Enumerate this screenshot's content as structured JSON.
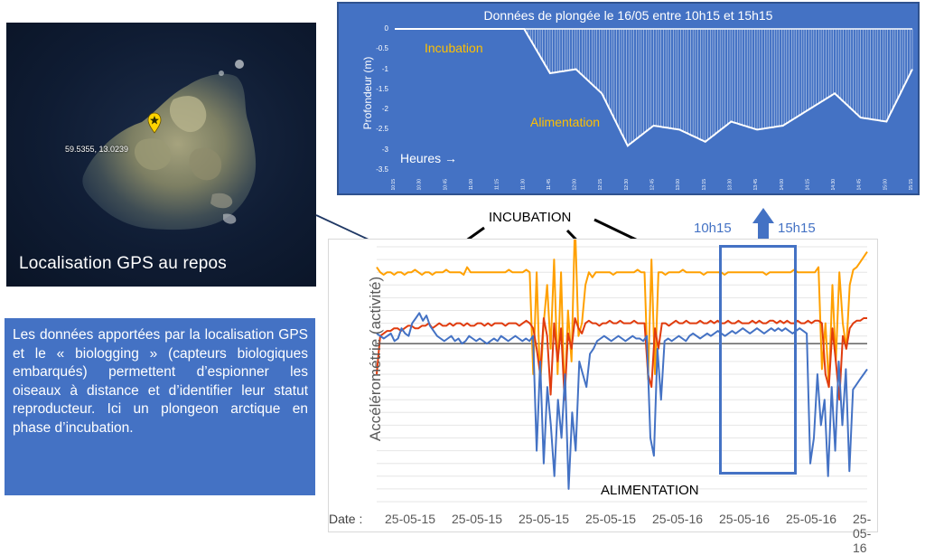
{
  "satellite": {
    "coordinates": "59.5355, 13.0239",
    "caption": "Localisation GPS au repos"
  },
  "description": "Les données apportées par la localisation GPS et le « biologging » (capteurs biologiques embarqués) permettent d’espionner les oiseaux à distance et d’identifier leur statut reproducteur. Ici un plongeon arctique en phase d’incubation.",
  "annotations": {
    "incubation_top": "INCUBATION",
    "alimentation_bottom": "ALIMENTATION",
    "start_time": "10h15",
    "end_time": "15h15",
    "date_label": "Date :"
  },
  "colors": {
    "panel_blue": "#4472c4",
    "orange": "#ffa000",
    "red": "#e03c0e",
    "blue": "#4472c4",
    "dark_line": "#404040"
  },
  "chart_data": [
    {
      "type": "area",
      "title": "Données de plongée le 16/05 entre 10h15 et 15h15",
      "ylabel": "Profondeur (m)",
      "xlabel": "Heures →",
      "ylim": [
        -3.5,
        0
      ],
      "yticks": [
        "0",
        "-0.5",
        "-1",
        "-1.5",
        "-2",
        "-2.5",
        "-3",
        "-3.5"
      ],
      "annotations": [
        "Incubation",
        "Alimentation"
      ],
      "x": [
        "10:15",
        "10:30",
        "10:45",
        "11:00",
        "11:15",
        "11:30",
        "11:45",
        "12:00",
        "12:15",
        "12:30",
        "12:45",
        "13:00",
        "13:15",
        "13:30",
        "13:45",
        "14:00",
        "14:15",
        "14:30",
        "14:45",
        "15:00",
        "15:15"
      ],
      "series": [
        {
          "values": [
            0,
            0,
            0,
            0,
            0,
            0,
            -1.1,
            -1.0,
            -1.6,
            -2.9,
            -2.4,
            -2.5,
            -2.8,
            -2.3,
            -2.5,
            -2.4,
            -2.0,
            -1.6,
            -2.2,
            -2.3,
            -1.0
          ]
        }
      ]
    },
    {
      "type": "line",
      "ylabel": "Accélérométrie (activité)",
      "xlabel": "Date :",
      "xticks": [
        "25-05-15",
        "25-05-15",
        "25-05-15",
        "25-05-15",
        "25-05-16",
        "25-05-16",
        "25-05-16",
        "25-05-16"
      ],
      "grid": true,
      "series": [
        {
          "color": "#ffa000",
          "values": [
            62,
            60,
            59,
            60,
            60,
            59,
            60,
            60,
            59,
            60,
            60,
            61,
            60,
            59,
            60,
            60,
            59,
            60,
            60,
            60,
            61,
            60,
            60,
            60,
            60,
            59,
            62,
            60,
            60,
            60,
            60,
            60,
            60,
            60,
            60,
            60,
            60,
            60,
            61,
            60,
            60,
            60,
            60,
            61,
            60,
            20,
            60,
            15,
            40,
            55,
            30,
            65,
            20,
            60,
            10,
            45,
            25,
            80,
            35,
            40,
            55,
            60,
            58,
            60,
            60,
            60,
            60,
            60,
            59,
            60,
            60,
            60,
            60,
            60,
            60,
            61,
            60,
            60,
            18,
            65,
            20,
            60,
            60,
            59,
            60,
            60,
            60,
            60,
            61,
            60,
            60,
            60,
            60,
            60,
            59,
            60,
            60,
            60,
            60,
            60,
            59,
            60,
            60,
            60,
            60,
            60,
            60,
            60,
            60,
            60,
            60,
            60,
            59,
            60,
            60,
            60,
            60,
            60,
            60,
            60,
            61,
            60,
            60,
            60,
            60,
            60,
            60,
            62,
            22,
            40,
            15,
            55,
            25,
            60,
            40,
            30,
            55,
            61,
            62,
            64,
            66,
            68
          ]
        },
        {
          "color": "#e03c0e",
          "values": [
            20,
            35,
            36,
            37,
            37,
            38,
            38,
            37,
            38,
            39,
            39,
            38,
            38,
            39,
            39,
            40,
            38,
            39,
            40,
            39,
            39,
            40,
            39,
            40,
            40,
            39,
            40,
            39,
            39,
            40,
            40,
            39,
            40,
            39,
            40,
            40,
            40,
            39,
            40,
            40,
            40,
            39,
            40,
            41,
            40,
            38,
            30,
            20,
            42,
            35,
            12,
            40,
            25,
            38,
            10,
            36,
            30,
            42,
            38,
            36,
            40,
            41,
            40,
            40,
            39,
            40,
            40,
            41,
            40,
            40,
            41,
            40,
            40,
            40,
            41,
            40,
            40,
            40,
            20,
            15,
            38,
            30,
            40,
            40,
            39,
            40,
            41,
            40,
            40,
            41,
            40,
            40,
            40,
            41,
            40,
            40,
            41,
            40,
            41,
            40,
            40,
            41,
            40,
            40,
            41,
            40,
            40,
            40,
            41,
            40,
            41,
            40,
            40,
            41,
            41,
            40,
            41,
            40,
            41,
            40,
            40,
            41,
            40,
            40,
            41,
            40,
            41,
            41,
            40,
            20,
            15,
            38,
            25,
            10,
            35,
            30,
            38,
            40,
            41,
            41,
            42,
            42
          ]
        },
        {
          "color": "#4472c4",
          "values": [
            36,
            35,
            34,
            35,
            36,
            33,
            34,
            38,
            36,
            35,
            40,
            42,
            44,
            41,
            43,
            39,
            37,
            35,
            34,
            33,
            34,
            35,
            33,
            34,
            32,
            33,
            35,
            34,
            33,
            34,
            33,
            32,
            33,
            34,
            33,
            35,
            34,
            33,
            34,
            35,
            34,
            33,
            34,
            33,
            35,
            -10,
            25,
            -15,
            15,
            0,
            -20,
            10,
            -5,
            20,
            -25,
            5,
            -10,
            25,
            20,
            15,
            28,
            30,
            33,
            34,
            35,
            34,
            33,
            34,
            35,
            34,
            33,
            34,
            35,
            34,
            34,
            33,
            35,
            -5,
            -12,
            30,
            10,
            33,
            34,
            33,
            34,
            35,
            34,
            33,
            35,
            36,
            35,
            34,
            35,
            36,
            35,
            36,
            37,
            36,
            35,
            36,
            37,
            36,
            37,
            38,
            37,
            36,
            37,
            38,
            37,
            36,
            37,
            38,
            37,
            38,
            37,
            38,
            37,
            36,
            37,
            38,
            37,
            36,
            -15,
            -5,
            20,
            0,
            10,
            -20,
            15,
            -10,
            25,
            0,
            22,
            -18,
            14,
            16,
            18,
            20,
            22
          ]
        }
      ]
    }
  ]
}
